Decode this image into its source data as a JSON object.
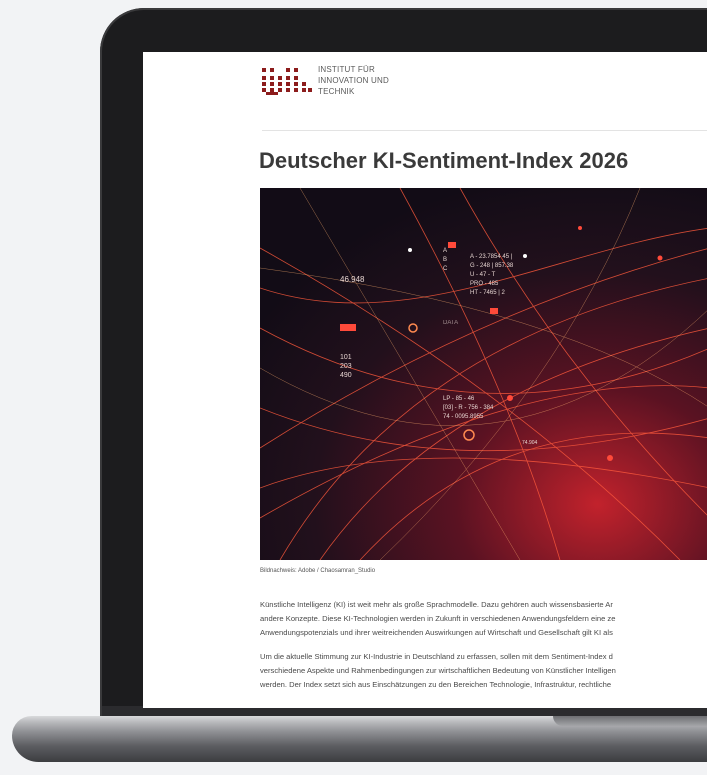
{
  "header": {
    "logo_lines": [
      "INSTITUT FÜR",
      "INNOVATION UND",
      "TECHNIK"
    ]
  },
  "article": {
    "title": "Deutscher KI-Sentiment-Index 2026",
    "image_labels": [
      "46.948",
      "101",
      "203",
      "490",
      "A",
      "B",
      "C",
      "A - 23.7854 45 |",
      "G - 248 | 857.38",
      "U - 47 - T",
      "PRO - 485",
      "HT - 7465 | 2",
      "DATA",
      "LP - 85 - 46",
      "[03] - R - 756 - 384",
      "74 - 0095.8955",
      "74.904"
    ],
    "image_credit": "Bildnachweis: Adobe / Chaosamran_Studio",
    "paragraphs": [
      [
        "Künstliche Intelligenz (KI) ist weit mehr als große Sprachmodelle. Dazu gehören auch wissensbasierte Ar",
        "andere Konzepte. Diese KI-Technologien werden in Zukunft in verschiedenen Anwendungsfeldern eine ze",
        "Anwendungspotenzials und ihrer weitreichenden Auswirkungen auf Wirtschaft und Gesellschaft gilt KI als"
      ],
      [
        "Um die aktuelle Stimmung zur KI-Industrie in Deutschland zu erfassen, sollen mit dem Sentiment-Index d",
        "verschiedene Aspekte und Rahmenbedingungen zur wirtschaftlichen Bedeutung von Künstlicher Intelligen",
        "werden. Der Index setzt sich aus Einschätzungen zu den Bereichen Technologie, Infrastruktur, rechtliche"
      ]
    ]
  }
}
